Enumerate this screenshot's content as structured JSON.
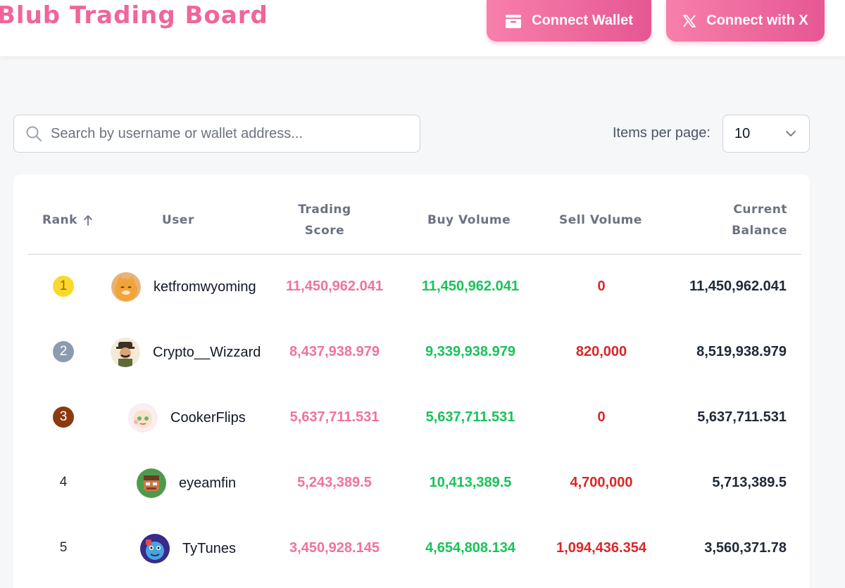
{
  "header": {
    "brand": "Blub Trading Board",
    "connect_wallet": "Connect Wallet",
    "connect_x": "Connect with X"
  },
  "search": {
    "placeholder": "Search by username or wallet address..."
  },
  "pagination": {
    "label": "Items per page:",
    "value": "10"
  },
  "table": {
    "columns": {
      "rank": "Rank",
      "user": "User",
      "score_1": "Trading",
      "score_2": "Score",
      "buy": "Buy Volume",
      "sell": "Sell Volume",
      "balance_1": "Current",
      "balance_2": "Balance"
    },
    "rows": [
      {
        "rank": "1",
        "user": "ketfromwyoming",
        "score": "11,450,962.041",
        "buy": "11,450,962.041",
        "sell": "0",
        "balance": "11,450,962.041"
      },
      {
        "rank": "2",
        "user": "Crypto__Wizzard",
        "score": "8,437,938.979",
        "buy": "9,339,938.979",
        "sell": "820,000",
        "balance": "8,519,938.979"
      },
      {
        "rank": "3",
        "user": "CookerFlips",
        "score": "5,637,711.531",
        "buy": "5,637,711.531",
        "sell": "0",
        "balance": "5,637,711.531"
      },
      {
        "rank": "4",
        "user": "eyeamfin",
        "score": "5,243,389.5",
        "buy": "10,413,389.5",
        "sell": "4,700,000",
        "balance": "5,713,389.5"
      },
      {
        "rank": "5",
        "user": "TyTunes",
        "score": "3,450,928.145",
        "buy": "4,654,808.134",
        "sell": "1,094,436.354",
        "balance": "3,560,371.78"
      }
    ]
  },
  "colors": {
    "brand": "#f0659a",
    "score": "#f0729f",
    "buy": "#18c35a",
    "sell": "#dc2626",
    "gold": "#fbd92c",
    "silver": "#8d9bb0",
    "bronze": "#8b3a10"
  }
}
